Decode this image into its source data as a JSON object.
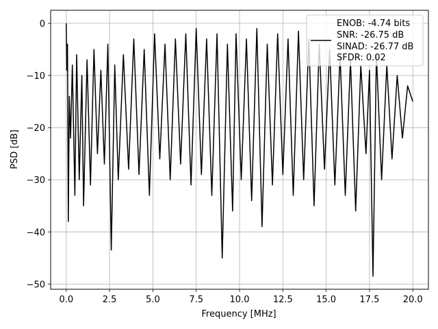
{
  "chart_data": {
    "type": "line",
    "xlabel": "Frequency [MHz]",
    "ylabel": "PSD [dB]",
    "xlim": [
      -0.9,
      20.9
    ],
    "ylim": [
      -51,
      2.5
    ],
    "x_ticks": [
      0.0,
      2.5,
      5.0,
      7.5,
      10.0,
      12.5,
      15.0,
      17.5,
      20.0
    ],
    "x_tick_labels": [
      "0.0",
      "2.5",
      "5.0",
      "7.5",
      "10.0",
      "12.5",
      "15.0",
      "17.5",
      "20.0"
    ],
    "y_ticks": [
      0,
      -10,
      -20,
      -30,
      -40,
      -50
    ],
    "y_tick_labels": [
      "0",
      "−10",
      "−20",
      "−30",
      "−40",
      "−50"
    ],
    "grid": true,
    "legend_position": "top-right",
    "legend_lines": [
      "ENOB: -4.74 bits",
      "SNR: -26.75 dB",
      "SINAD: -26.77 dB",
      "SFDR: 0.02"
    ],
    "series": [
      {
        "color": "#000000",
        "x": [
          0.0,
          0.03,
          0.07,
          0.12,
          0.18,
          0.25,
          0.35,
          0.5,
          0.6,
          0.75,
          0.9,
          1.0,
          1.2,
          1.4,
          1.6,
          1.8,
          2.0,
          2.2,
          2.4,
          2.6,
          2.8,
          3.0,
          3.3,
          3.6,
          3.9,
          4.2,
          4.5,
          4.8,
          5.1,
          5.4,
          5.7,
          6.0,
          6.3,
          6.6,
          6.9,
          7.2,
          7.5,
          7.8,
          8.1,
          8.4,
          8.7,
          9.0,
          9.3,
          9.6,
          9.8,
          10.1,
          10.4,
          10.7,
          11.0,
          11.3,
          11.6,
          11.9,
          12.2,
          12.5,
          12.8,
          13.1,
          13.4,
          13.7,
          14.0,
          14.3,
          14.6,
          14.9,
          15.2,
          15.5,
          15.8,
          16.1,
          16.4,
          16.7,
          17.0,
          17.3,
          17.5,
          17.7,
          17.9,
          18.2,
          18.5,
          18.8,
          19.1,
          19.4,
          19.7,
          20.0
        ],
        "y": [
          0.0,
          -9.0,
          -4.0,
          -38.0,
          -14.0,
          -22.0,
          -8.0,
          -33.0,
          -6.0,
          -30.0,
          -10.0,
          -35.0,
          -7.0,
          -31.0,
          -5.0,
          -25.0,
          -9.0,
          -27.0,
          -4.0,
          -43.5,
          -8.0,
          -30.0,
          -6.0,
          -28.0,
          -3.0,
          -29.0,
          -5.0,
          -33.0,
          -2.0,
          -26.0,
          -4.0,
          -30.0,
          -3.0,
          -27.0,
          -2.0,
          -31.0,
          -1.0,
          -29.0,
          -3.0,
          -33.0,
          -2.0,
          -45.0,
          -4.0,
          -36.0,
          -2.0,
          -30.0,
          -3.0,
          -34.0,
          -1.0,
          -39.0,
          -4.0,
          -31.0,
          -2.0,
          -29.0,
          -3.0,
          -33.0,
          -1.5,
          -30.0,
          -3.0,
          -35.0,
          -4.0,
          -28.0,
          -5.0,
          -31.0,
          -6.0,
          -33.0,
          -7.0,
          -36.0,
          -8.0,
          -25.0,
          -9.0,
          -48.5,
          -6.0,
          -30.0,
          -8.0,
          -26.0,
          -10.0,
          -22.0,
          -12.0,
          -15.0
        ]
      }
    ]
  }
}
